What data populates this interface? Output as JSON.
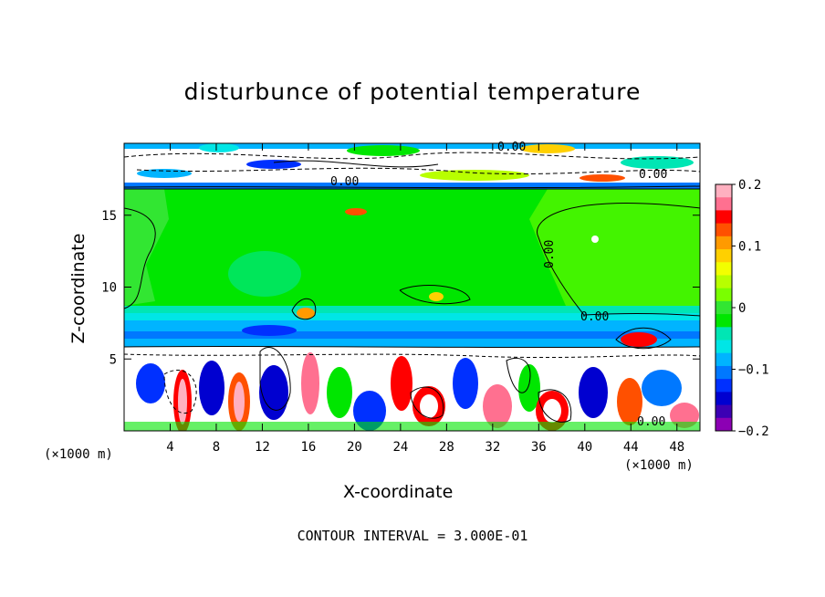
{
  "chart_data": {
    "type": "heatmap",
    "title": "disturbunce of potential temperature",
    "xlabel": "X-coordinate",
    "ylabel": "Z-coordinate",
    "x_unit": "(×1000 m)",
    "xlim": [
      0,
      50
    ],
    "ylim": [
      0,
      20
    ],
    "x_ticks": [
      4,
      8,
      12,
      16,
      20,
      24,
      28,
      32,
      36,
      40,
      44,
      48
    ],
    "y_ticks": [
      5,
      10,
      15
    ],
    "colorbar": {
      "range": [
        -0.2,
        0.2
      ],
      "ticks": [
        0.2,
        0.1,
        0,
        -0.1,
        -0.2
      ],
      "tick_labels": [
        "0.2",
        "0.1",
        "0",
        "−0.1",
        "−0.2"
      ],
      "colors": [
        "#ffb0c0",
        "#ff7090",
        "#ff0000",
        "#ff5000",
        "#ff9a00",
        "#ffd000",
        "#f2ff00",
        "#b8ff00",
        "#7aff00",
        "#32e632",
        "#00e600",
        "#00e6b4",
        "#00e6e6",
        "#00b4ff",
        "#0078ff",
        "#0030ff",
        "#0000d0",
        "#3c00b4",
        "#8c00b4"
      ]
    },
    "contour_labels": [
      "0.00",
      "0.00",
      "0.00",
      "0.00",
      "0.00",
      "0.00"
    ],
    "footer": "CONTOUR INTERVAL = 3.000E-01"
  }
}
